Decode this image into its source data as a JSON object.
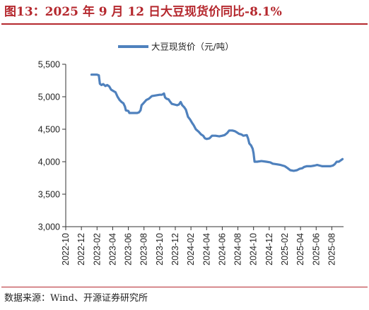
{
  "title": "图13：2025 年 9 月 12 日大豆现货价同比-8.1%",
  "source": "数据来源：Wind、开源证券研究所",
  "chart_data": {
    "type": "line",
    "ylim": [
      3000,
      5500
    ],
    "yticks": [
      3000,
      3500,
      4000,
      4500,
      5000,
      5500
    ],
    "ytick_labels": [
      "3,000",
      "3,500",
      "4,000",
      "4,500",
      "5,000",
      "5,500"
    ],
    "xlim": [
      "2022-10",
      "2025-09"
    ],
    "xticks": [
      "2022-10",
      "2022-12",
      "2023-02",
      "2023-04",
      "2023-06",
      "2023-08",
      "2023-10",
      "2023-12",
      "2024-02",
      "2024-04",
      "2024-06",
      "2024-08",
      "2024-10",
      "2024-12",
      "2025-02",
      "2025-04",
      "2025-06",
      "2025-08"
    ],
    "legend_position": "top-center",
    "grid": false,
    "colors": {
      "series": "#4f81bd",
      "title": "#b5282e",
      "axis": "#333333"
    },
    "series": [
      {
        "name": "大豆现货价（元/吨）",
        "points": [
          [
            "2023-01-10",
            5340
          ],
          [
            "2023-02-01",
            5340
          ],
          [
            "2023-02-08",
            5330
          ],
          [
            "2023-02-12",
            5200
          ],
          [
            "2023-02-18",
            5180
          ],
          [
            "2023-02-25",
            5195
          ],
          [
            "2023-03-03",
            5165
          ],
          [
            "2023-03-10",
            5180
          ],
          [
            "2023-03-18",
            5160
          ],
          [
            "2023-03-25",
            5110
          ],
          [
            "2023-04-03",
            5090
          ],
          [
            "2023-04-12",
            5070
          ],
          [
            "2023-04-20",
            5000
          ],
          [
            "2023-04-28",
            4950
          ],
          [
            "2023-05-05",
            4920
          ],
          [
            "2023-05-12",
            4900
          ],
          [
            "2023-05-18",
            4850
          ],
          [
            "2023-05-22",
            4790
          ],
          [
            "2023-06-01",
            4780
          ],
          [
            "2023-06-05",
            4750
          ],
          [
            "2023-06-20",
            4750
          ],
          [
            "2023-07-05",
            4750
          ],
          [
            "2023-07-12",
            4760
          ],
          [
            "2023-07-18",
            4790
          ],
          [
            "2023-07-22",
            4870
          ],
          [
            "2023-08-01",
            4910
          ],
          [
            "2023-08-10",
            4950
          ],
          [
            "2023-08-20",
            4970
          ],
          [
            "2023-09-01",
            5010
          ],
          [
            "2023-09-15",
            5020
          ],
          [
            "2023-10-01",
            5030
          ],
          [
            "2023-10-10",
            5030
          ],
          [
            "2023-10-18",
            5050
          ],
          [
            "2023-10-22",
            4990
          ],
          [
            "2023-10-28",
            4970
          ],
          [
            "2023-11-05",
            4960
          ],
          [
            "2023-11-10",
            4930
          ],
          [
            "2023-11-18",
            4890
          ],
          [
            "2023-11-28",
            4880
          ],
          [
            "2023-12-08",
            4870
          ],
          [
            "2023-12-15",
            4880
          ],
          [
            "2023-12-22",
            4920
          ],
          [
            "2023-12-28",
            4870
          ],
          [
            "2024-01-05",
            4840
          ],
          [
            "2024-01-12",
            4800
          ],
          [
            "2024-01-20",
            4690
          ],
          [
            "2024-01-28",
            4650
          ],
          [
            "2024-02-05",
            4600
          ],
          [
            "2024-02-12",
            4560
          ],
          [
            "2024-02-20",
            4500
          ],
          [
            "2024-03-01",
            4460
          ],
          [
            "2024-03-10",
            4420
          ],
          [
            "2024-03-18",
            4400
          ],
          [
            "2024-03-25",
            4360
          ],
          [
            "2024-04-01",
            4350
          ],
          [
            "2024-04-12",
            4360
          ],
          [
            "2024-04-22",
            4400
          ],
          [
            "2024-05-05",
            4400
          ],
          [
            "2024-05-20",
            4390
          ],
          [
            "2024-06-01",
            4400
          ],
          [
            "2024-06-10",
            4410
          ],
          [
            "2024-06-20",
            4440
          ],
          [
            "2024-06-28",
            4480
          ],
          [
            "2024-07-10",
            4480
          ],
          [
            "2024-07-20",
            4470
          ],
          [
            "2024-07-28",
            4450
          ],
          [
            "2024-08-05",
            4430
          ],
          [
            "2024-08-15",
            4420
          ],
          [
            "2024-08-22",
            4400
          ],
          [
            "2024-09-05",
            4410
          ],
          [
            "2024-09-10",
            4360
          ],
          [
            "2024-09-15",
            4280
          ],
          [
            "2024-09-22",
            4250
          ],
          [
            "2024-09-28",
            4200
          ],
          [
            "2024-10-01",
            4130
          ],
          [
            "2024-10-05",
            4000
          ],
          [
            "2024-10-15",
            4000
          ],
          [
            "2024-11-01",
            4010
          ],
          [
            "2024-11-20",
            4000
          ],
          [
            "2024-12-05",
            3990
          ],
          [
            "2024-12-15",
            3970
          ],
          [
            "2025-01-01",
            3960
          ],
          [
            "2025-01-15",
            3950
          ],
          [
            "2025-02-01",
            3930
          ],
          [
            "2025-02-12",
            3900
          ],
          [
            "2025-02-22",
            3870
          ],
          [
            "2025-03-05",
            3860
          ],
          [
            "2025-03-18",
            3870
          ],
          [
            "2025-03-28",
            3890
          ],
          [
            "2025-04-08",
            3900
          ],
          [
            "2025-04-15",
            3920
          ],
          [
            "2025-04-25",
            3930
          ],
          [
            "2025-05-10",
            3930
          ],
          [
            "2025-05-25",
            3940
          ],
          [
            "2025-06-05",
            3950
          ],
          [
            "2025-06-15",
            3940
          ],
          [
            "2025-06-25",
            3930
          ],
          [
            "2025-07-10",
            3930
          ],
          [
            "2025-07-25",
            3930
          ],
          [
            "2025-08-05",
            3940
          ],
          [
            "2025-08-12",
            3960
          ],
          [
            "2025-08-20",
            4000
          ],
          [
            "2025-08-28",
            4000
          ],
          [
            "2025-09-05",
            4020
          ],
          [
            "2025-09-12",
            4040
          ]
        ]
      }
    ]
  }
}
